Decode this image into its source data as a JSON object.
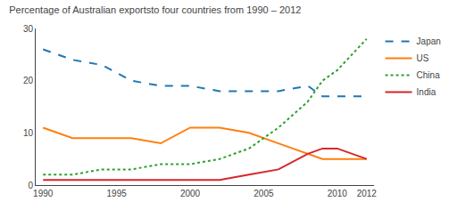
{
  "chart_data": {
    "type": "line",
    "title": "Percentage of Australian exportsto four countries from 1990 – 2012",
    "x": [
      1990,
      1992,
      1994,
      1996,
      1998,
      2000,
      2002,
      2004,
      2006,
      2008,
      2009,
      2010,
      2012
    ],
    "series": [
      {
        "name": "Japan",
        "line_style": "dashed",
        "values": [
          26,
          24,
          23,
          20,
          19,
          19,
          18,
          18,
          18,
          19,
          17,
          17,
          17
        ]
      },
      {
        "name": "US",
        "line_style": "solid",
        "values": [
          11,
          9,
          9,
          9,
          8,
          11,
          11,
          10,
          8,
          6,
          5,
          5,
          5
        ]
      },
      {
        "name": "China",
        "line_style": "dotted",
        "values": [
          2,
          2,
          3,
          3,
          4,
          4,
          5,
          7,
          11,
          16,
          20,
          22,
          28
        ]
      },
      {
        "name": "India",
        "line_style": "solid",
        "values": [
          1,
          1,
          1,
          1,
          1,
          1,
          1,
          2,
          3,
          6,
          7,
          7,
          5
        ]
      }
    ],
    "xlim": [
      1989.5,
      2012.5
    ],
    "xticks": [
      1990,
      1995,
      2000,
      2005,
      2010,
      2012
    ],
    "ylim": [
      0,
      30
    ],
    "yticks": [
      0,
      10,
      20,
      30
    ],
    "grid": false,
    "legend": "upper right"
  }
}
